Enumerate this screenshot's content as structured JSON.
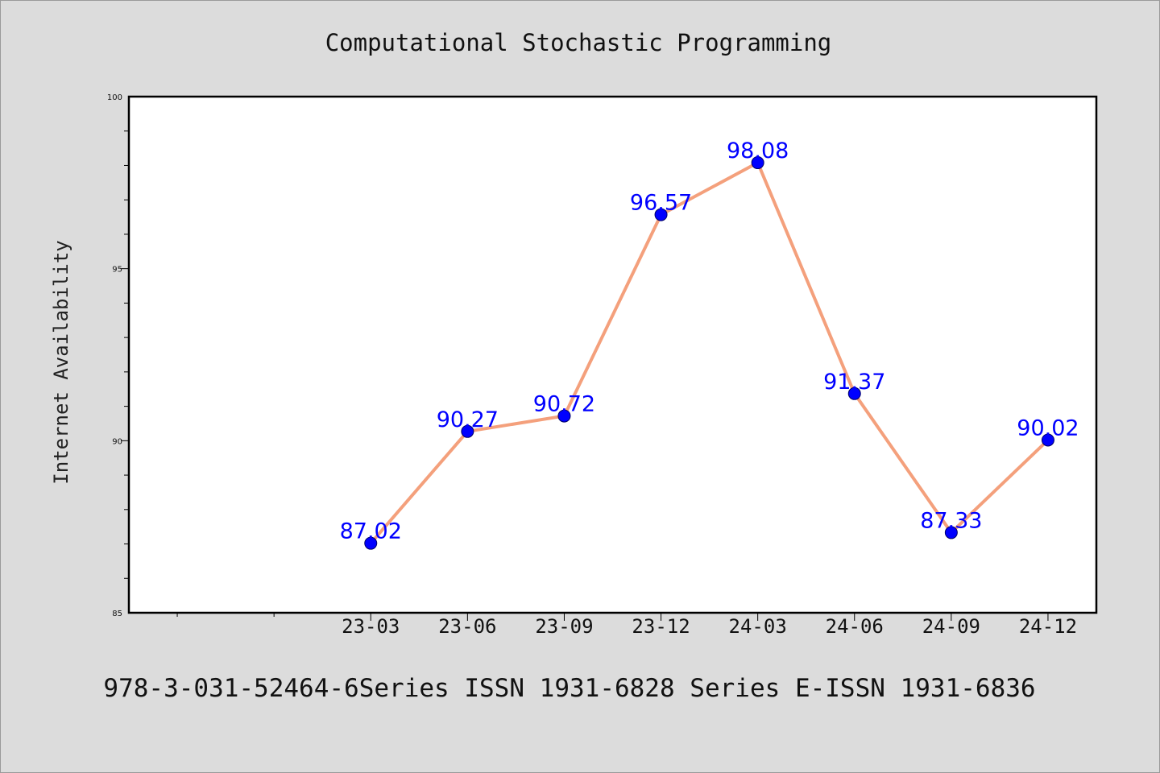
{
  "chart_data": {
    "type": "line",
    "title": "Computational Stochastic Programming",
    "ylabel": "Internet Availability",
    "xlabel": "",
    "categories": [
      "23-03",
      "23-06",
      "23-09",
      "23-12",
      "24-03",
      "24-06",
      "24-09",
      "24-12"
    ],
    "values": [
      87.02,
      90.27,
      90.72,
      96.57,
      98.08,
      91.37,
      87.33,
      90.02
    ],
    "data_labels": [
      "87.02",
      "90.27",
      "90.72",
      "96.57",
      "98.08",
      "91.37",
      "87.33",
      "90.02"
    ],
    "ylim": [
      85,
      100
    ],
    "yticks": [
      85,
      90,
      95,
      100
    ],
    "ytick_labels": [
      "85",
      "90",
      "95",
      "100"
    ],
    "grid": false,
    "line_color": "#f4a07c",
    "marker_color": "#0000ff",
    "label_color": "#0000ff"
  },
  "footer": "978-3-031-52464-6Series ISSN 1931-6828 Series E-ISSN 1931-6836"
}
